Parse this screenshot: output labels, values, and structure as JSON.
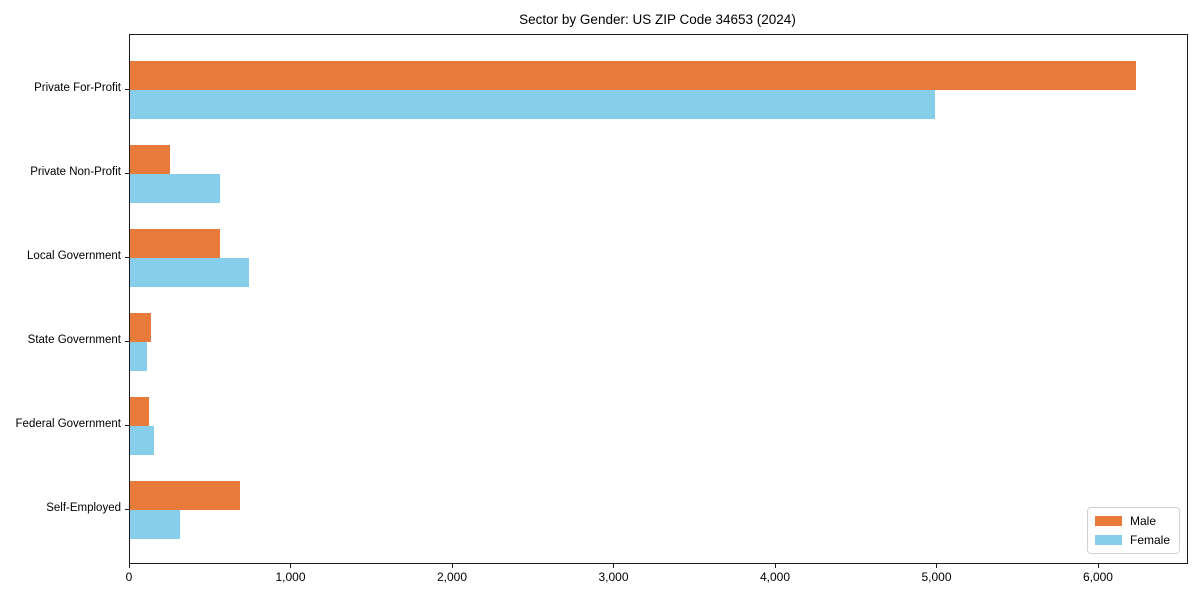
{
  "chart_data": {
    "type": "bar",
    "orientation": "horizontal",
    "title": "Sector by Gender: US ZIP Code 34653 (2024)",
    "categories": [
      "Private For-Profit",
      "Private Non-Profit",
      "Local Government",
      "State Government",
      "Federal Government",
      "Self-Employed"
    ],
    "series": [
      {
        "name": "Male",
        "color": "#e87a3c",
        "values": [
          6230,
          250,
          555,
          130,
          120,
          680
        ]
      },
      {
        "name": "Female",
        "color": "#87ceeb",
        "values": [
          4985,
          560,
          735,
          105,
          150,
          310
        ]
      }
    ],
    "xlabel": "",
    "ylabel": "",
    "xlim": [
      0,
      6545
    ],
    "xticks": [
      0,
      1000,
      2000,
      3000,
      4000,
      5000,
      6000
    ],
    "xtick_labels": [
      "0",
      "1,000",
      "2,000",
      "3,000",
      "4,000",
      "5,000",
      "6,000"
    ],
    "grid": false,
    "legend_position": "lower-right",
    "axis_color": "#1a1a1a"
  }
}
